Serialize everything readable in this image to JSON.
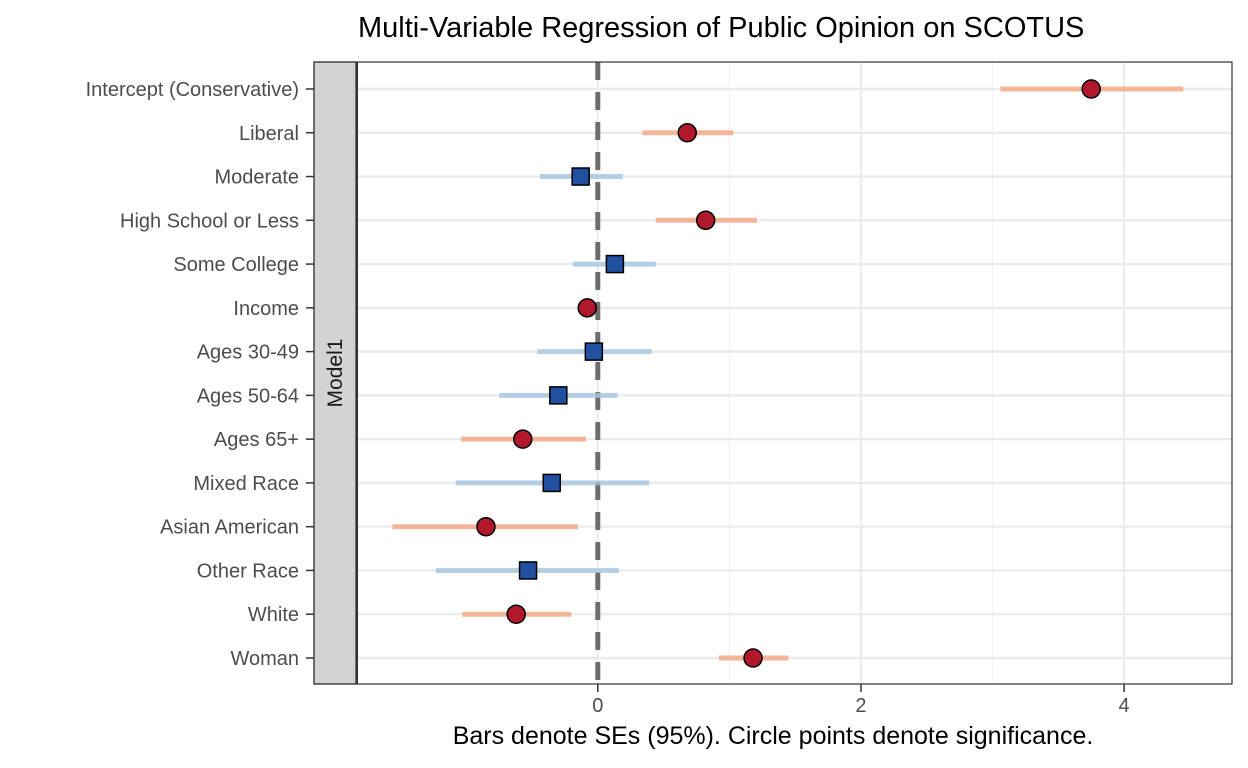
{
  "chart_data": {
    "type": "scatter",
    "title": "Multi-Variable Regression of Public Opinion on SCOTUS",
    "xlabel": "Bars denote SEs (95%). Circle points denote significance.",
    "ylabel": "",
    "facet_label": "Model1",
    "xlim": [
      -1.83,
      4.82
    ],
    "x_ticks": [
      0,
      2,
      4
    ],
    "x_tick_labels": [
      "0",
      "2",
      "4"
    ],
    "reference_line": 0,
    "grid": true,
    "legend": "none",
    "colors": {
      "significant_point": "#B2182B",
      "significant_bar": "#F4A582",
      "nonsignificant_point": "#2150A0",
      "nonsignificant_bar": "#A6C6DE",
      "reference_line": "#6E6E6E",
      "strip_fill": "#D3D3D3"
    },
    "terms": [
      {
        "label": "Intercept (Conservative)",
        "estimate": 3.75,
        "lower": 3.06,
        "upper": 4.45,
        "significant": true
      },
      {
        "label": "Liberal",
        "estimate": 0.68,
        "lower": 0.34,
        "upper": 1.03,
        "significant": true
      },
      {
        "label": "Moderate",
        "estimate": -0.13,
        "lower": -0.44,
        "upper": 0.19,
        "significant": false
      },
      {
        "label": "High School or Less",
        "estimate": 0.82,
        "lower": 0.44,
        "upper": 1.21,
        "significant": true
      },
      {
        "label": "Some College",
        "estimate": 0.13,
        "lower": -0.19,
        "upper": 0.44,
        "significant": false
      },
      {
        "label": "Income",
        "estimate": -0.08,
        "lower": -0.11,
        "upper": -0.05,
        "significant": true
      },
      {
        "label": "Ages 30-49",
        "estimate": -0.03,
        "lower": -0.46,
        "upper": 0.41,
        "significant": false
      },
      {
        "label": "Ages 50-64",
        "estimate": -0.3,
        "lower": -0.75,
        "upper": 0.15,
        "significant": false
      },
      {
        "label": "Ages 65+",
        "estimate": -0.57,
        "lower": -1.04,
        "upper": -0.09,
        "significant": true
      },
      {
        "label": "Mixed Race",
        "estimate": -0.35,
        "lower": -1.08,
        "upper": 0.39,
        "significant": false
      },
      {
        "label": "Asian American",
        "estimate": -0.85,
        "lower": -1.56,
        "upper": -0.15,
        "significant": true
      },
      {
        "label": "Other Race",
        "estimate": -0.53,
        "lower": -1.23,
        "upper": 0.16,
        "significant": false
      },
      {
        "label": "White",
        "estimate": -0.62,
        "lower": -1.03,
        "upper": -0.2,
        "significant": true
      },
      {
        "label": "Woman",
        "estimate": 1.18,
        "lower": 0.92,
        "upper": 1.45,
        "significant": true
      }
    ]
  }
}
